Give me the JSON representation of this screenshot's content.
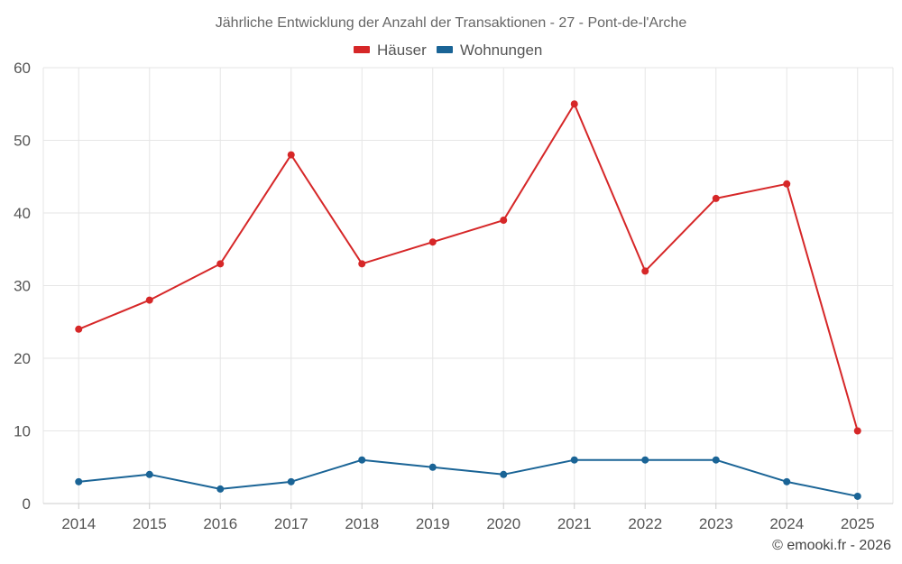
{
  "chart_data": {
    "type": "line",
    "title": "Jährliche Entwicklung der Anzahl der Transaktionen - 27 - Pont-de-l'Arche",
    "categories": [
      "2014",
      "2015",
      "2016",
      "2017",
      "2018",
      "2019",
      "2020",
      "2021",
      "2022",
      "2023",
      "2024",
      "2025"
    ],
    "series": [
      {
        "name": "Häuser",
        "color": "#d62728",
        "values": [
          24,
          28,
          33,
          48,
          33,
          36,
          39,
          55,
          32,
          42,
          44,
          10
        ]
      },
      {
        "name": "Wohnungen",
        "color": "#1a6496",
        "values": [
          3,
          4,
          2,
          3,
          6,
          5,
          4,
          6,
          6,
          6,
          3,
          1
        ]
      }
    ],
    "ylim": [
      0,
      60
    ],
    "yticks": [
      "0",
      "10",
      "20",
      "30",
      "40",
      "50",
      "60"
    ],
    "xlabel": "",
    "ylabel": "",
    "grid": true,
    "legend": "top-center"
  },
  "credit": "© emooki.fr - 2026"
}
